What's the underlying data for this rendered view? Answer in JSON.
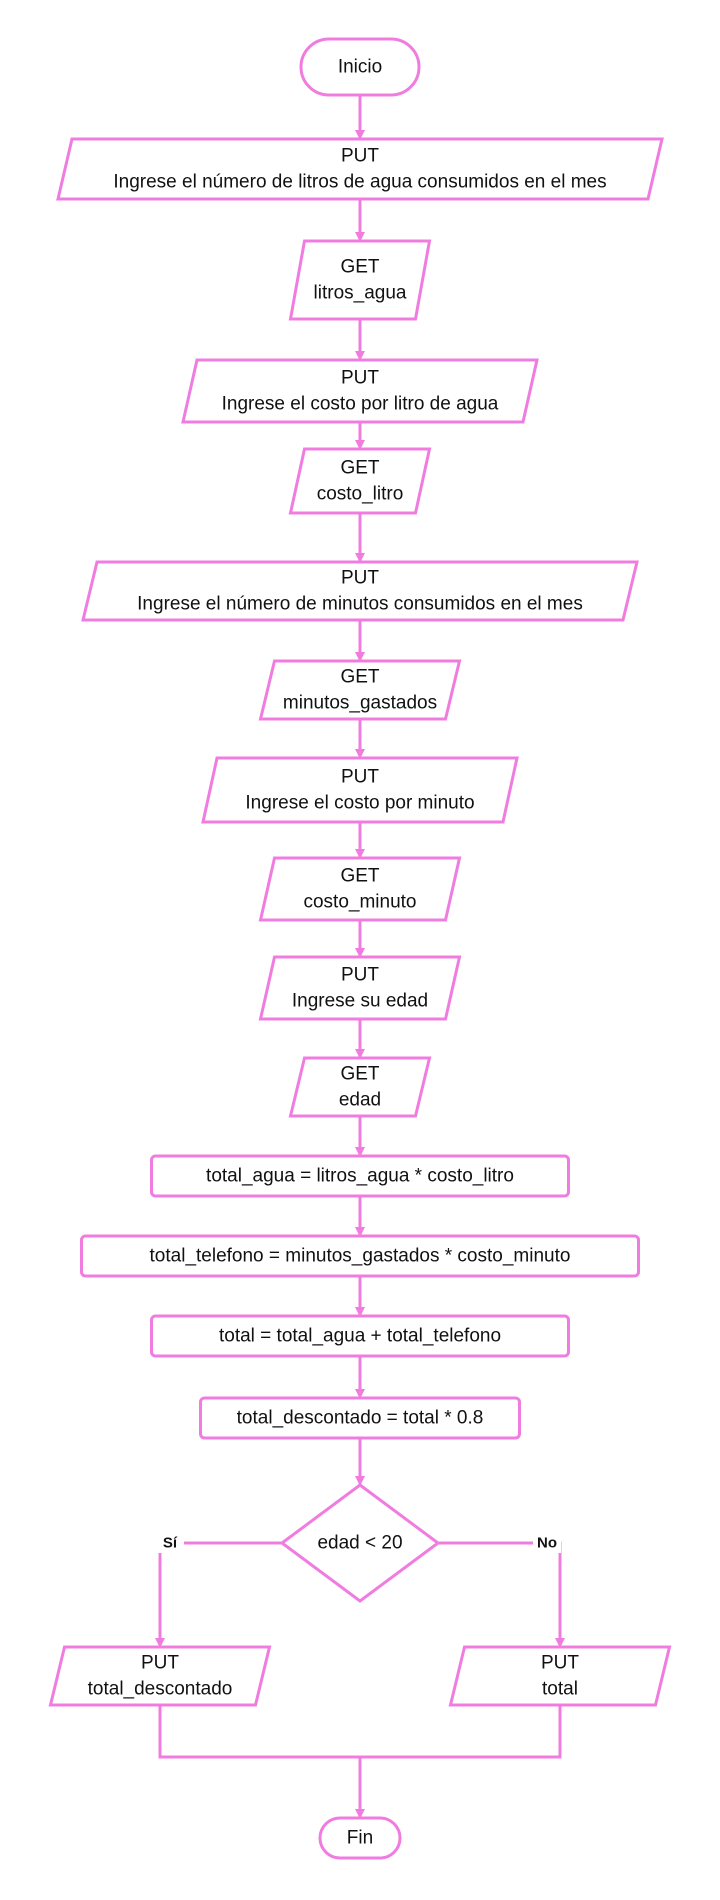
{
  "flowchart": {
    "start": "Inicio",
    "steps": [
      {
        "kind": "io",
        "lines": [
          "PUT",
          "Ingrese el número de litros de agua consumidos en el mes"
        ]
      },
      {
        "kind": "io",
        "lines": [
          "GET",
          "litros_agua"
        ]
      },
      {
        "kind": "io",
        "lines": [
          "PUT",
          "Ingrese el costo por litro de agua"
        ]
      },
      {
        "kind": "io",
        "lines": [
          "GET",
          "costo_litro"
        ]
      },
      {
        "kind": "io",
        "lines": [
          "PUT",
          "Ingrese el número de minutos consumidos en el mes"
        ]
      },
      {
        "kind": "io",
        "lines": [
          "GET",
          "minutos_gastados"
        ]
      },
      {
        "kind": "io",
        "lines": [
          "PUT",
          "Ingrese el costo por minuto"
        ]
      },
      {
        "kind": "io",
        "lines": [
          "GET",
          "costo_minuto"
        ]
      },
      {
        "kind": "io",
        "lines": [
          "PUT",
          "Ingrese su edad"
        ]
      },
      {
        "kind": "io",
        "lines": [
          "GET",
          "edad"
        ]
      },
      {
        "kind": "process",
        "lines": [
          "total_agua = litros_agua * costo_litro"
        ]
      },
      {
        "kind": "process",
        "lines": [
          "total_telefono = minutos_gastados * costo_minuto"
        ]
      },
      {
        "kind": "process",
        "lines": [
          "total = total_agua + total_telefono"
        ]
      },
      {
        "kind": "process",
        "lines": [
          "total_descontado = total * 0.8"
        ]
      }
    ],
    "decision": {
      "condition": "edad < 20",
      "yes_label": "Sí",
      "no_label": "No",
      "yes_output": [
        "PUT",
        "total_descontado"
      ],
      "no_output": [
        "PUT",
        "total"
      ]
    },
    "end": "Fin"
  },
  "colors": {
    "stroke": "#f07ce0",
    "fill": "#ffffff",
    "text": "#111111"
  }
}
